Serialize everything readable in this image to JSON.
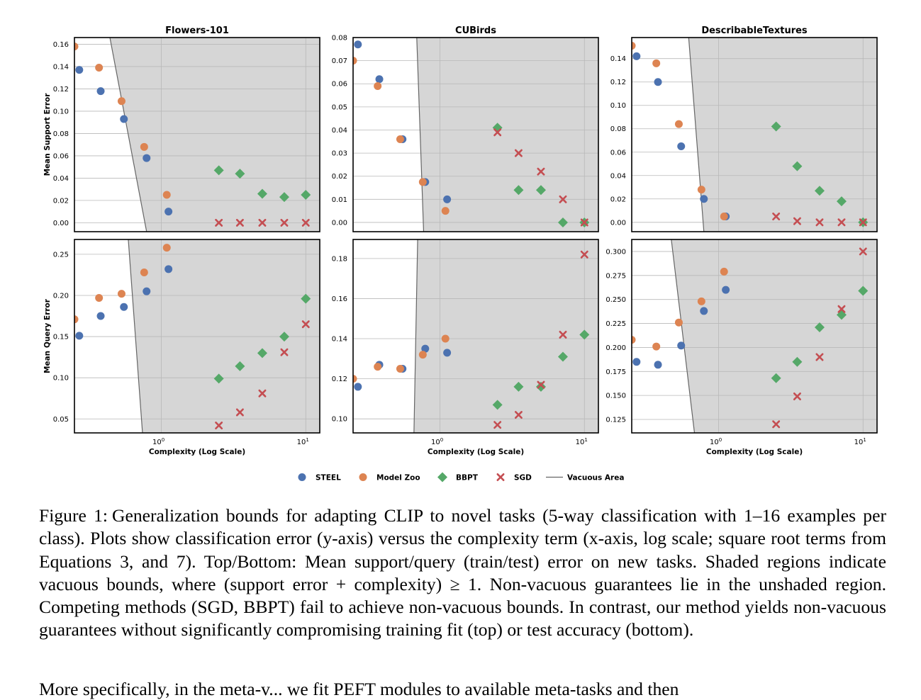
{
  "chart_data": [
    {
      "type": "scatter",
      "title": "Flowers-101",
      "ylabel": "Mean Support Error",
      "xlabel": "",
      "xscale": "log",
      "xlim": [
        0.25,
        12.5
      ],
      "ylim": [
        -0.008,
        0.166
      ],
      "yticks": [
        "0.00",
        "0.02",
        "0.04",
        "0.06",
        "0.08",
        "0.10",
        "0.12",
        "0.14",
        "0.16"
      ],
      "xticks": [],
      "vacuous_line": [
        [
          0.44,
          0.166
        ],
        [
          0.79,
          -0.008
        ]
      ],
      "series": [
        {
          "name": "STEEL",
          "x": [
            0.27,
            0.38,
            0.55,
            0.79,
            1.12
          ],
          "y": [
            0.137,
            0.118,
            0.093,
            0.058,
            0.01
          ]
        },
        {
          "name": "Model Zoo",
          "x": [
            0.25,
            0.37,
            0.53,
            0.76,
            1.09
          ],
          "y": [
            0.158,
            0.139,
            0.109,
            0.068,
            0.025
          ]
        },
        {
          "name": "BBPT",
          "x": [
            2.5,
            3.5,
            5.0,
            7.1,
            10.0
          ],
          "y": [
            0.047,
            0.044,
            0.026,
            0.023,
            0.025
          ]
        },
        {
          "name": "SGD",
          "x": [
            2.5,
            3.5,
            5.0,
            7.1,
            10.0
          ],
          "y": [
            0.0,
            0.0,
            0.0,
            0.0,
            0.0
          ]
        }
      ]
    },
    {
      "type": "scatter",
      "title": "CUBirds",
      "ylabel": "",
      "xlabel": "",
      "xscale": "log",
      "xlim": [
        0.25,
        12.5
      ],
      "ylim": [
        -0.004,
        0.08
      ],
      "yticks": [
        "0.00",
        "0.01",
        "0.02",
        "0.03",
        "0.04",
        "0.05",
        "0.06",
        "0.07",
        "0.08"
      ],
      "xticks": [],
      "vacuous_line": [
        [
          0.69,
          0.08
        ],
        [
          0.77,
          -0.004
        ]
      ],
      "series": [
        {
          "name": "STEEL",
          "x": [
            0.27,
            0.38,
            0.55,
            0.79,
            1.12
          ],
          "y": [
            0.077,
            0.062,
            0.036,
            0.0175,
            0.01
          ]
        },
        {
          "name": "Model Zoo",
          "x": [
            0.25,
            0.37,
            0.53,
            0.76,
            1.09
          ],
          "y": [
            0.07,
            0.059,
            0.036,
            0.0175,
            0.005
          ]
        },
        {
          "name": "BBPT",
          "x": [
            2.5,
            3.5,
            5.0,
            7.1,
            10.0
          ],
          "y": [
            0.041,
            0.014,
            0.014,
            0.0,
            0.0
          ]
        },
        {
          "name": "SGD",
          "x": [
            2.5,
            3.5,
            5.0,
            7.1,
            10.0
          ],
          "y": [
            0.039,
            0.03,
            0.022,
            0.01,
            0.0
          ]
        }
      ]
    },
    {
      "type": "scatter",
      "title": "DescribableTextures",
      "ylabel": "",
      "xlabel": "",
      "xscale": "log",
      "xlim": [
        0.25,
        12.5
      ],
      "ylim": [
        -0.008,
        0.158
      ],
      "yticks": [
        "0.00",
        "0.02",
        "0.04",
        "0.06",
        "0.08",
        "0.10",
        "0.12",
        "0.14"
      ],
      "xticks": [],
      "vacuous_line": [
        [
          0.62,
          0.158
        ],
        [
          0.79,
          -0.008
        ]
      ],
      "series": [
        {
          "name": "STEEL",
          "x": [
            0.27,
            0.38,
            0.55,
            0.79,
            1.12
          ],
          "y": [
            0.142,
            0.12,
            0.065,
            0.02,
            0.005
          ]
        },
        {
          "name": "Model Zoo",
          "x": [
            0.25,
            0.37,
            0.53,
            0.76,
            1.09
          ],
          "y": [
            0.151,
            0.136,
            0.084,
            0.028,
            0.005
          ]
        },
        {
          "name": "BBPT",
          "x": [
            2.5,
            3.5,
            5.0,
            7.1,
            10.0
          ],
          "y": [
            0.082,
            0.048,
            0.027,
            0.018,
            0.0
          ]
        },
        {
          "name": "SGD",
          "x": [
            2.5,
            3.5,
            5.0,
            7.1,
            10.0
          ],
          "y": [
            0.005,
            0.001,
            0.0,
            0.0,
            0.0
          ]
        }
      ]
    },
    {
      "type": "scatter",
      "title": "",
      "ylabel": "Mean Query Error",
      "xlabel": "Complexity (Log Scale)",
      "xscale": "log",
      "xlim": [
        0.25,
        12.5
      ],
      "ylim": [
        0.033,
        0.268
      ],
      "yticks": [
        "0.05",
        "0.10",
        "0.15",
        "0.20",
        "0.25"
      ],
      "xticks": [
        "10",
        "10"
      ],
      "xtick_exponents": [
        "0",
        "1"
      ],
      "vacuous_line": [
        [
          0.59,
          0.268
        ],
        [
          0.74,
          0.033
        ]
      ],
      "series": [
        {
          "name": "STEEL",
          "x": [
            0.27,
            0.38,
            0.55,
            0.79,
            1.12
          ],
          "y": [
            0.151,
            0.175,
            0.186,
            0.205,
            0.232
          ]
        },
        {
          "name": "Model Zoo",
          "x": [
            0.25,
            0.37,
            0.53,
            0.76,
            1.09
          ],
          "y": [
            0.171,
            0.197,
            0.202,
            0.228,
            0.258
          ]
        },
        {
          "name": "BBPT",
          "x": [
            2.5,
            3.5,
            5.0,
            7.1,
            10.0
          ],
          "y": [
            0.099,
            0.114,
            0.13,
            0.15,
            0.196
          ]
        },
        {
          "name": "SGD",
          "x": [
            2.5,
            3.5,
            5.0,
            7.1,
            10.0
          ],
          "y": [
            0.042,
            0.058,
            0.081,
            0.131,
            0.165
          ]
        }
      ]
    },
    {
      "type": "scatter",
      "title": "",
      "ylabel": "",
      "xlabel": "Complexity (Log Scale)",
      "xscale": "log",
      "xlim": [
        0.25,
        12.5
      ],
      "ylim": [
        0.093,
        0.1895
      ],
      "yticks": [
        "0.10",
        "0.12",
        "0.14",
        "0.16",
        "0.18"
      ],
      "xticks": [
        "10",
        "10"
      ],
      "xtick_exponents": [
        "0",
        "1"
      ],
      "vacuous_line": [
        [
          0.7,
          0.1895
        ],
        [
          0.66,
          0.093
        ]
      ],
      "series": [
        {
          "name": "STEEL",
          "x": [
            0.27,
            0.38,
            0.55,
            0.79,
            1.12
          ],
          "y": [
            0.116,
            0.127,
            0.125,
            0.135,
            0.133
          ]
        },
        {
          "name": "Model Zoo",
          "x": [
            0.25,
            0.37,
            0.53,
            0.76,
            1.09
          ],
          "y": [
            0.12,
            0.126,
            0.125,
            0.132,
            0.14
          ]
        },
        {
          "name": "BBPT",
          "x": [
            2.5,
            3.5,
            5.0,
            7.1,
            10.0
          ],
          "y": [
            0.107,
            0.116,
            0.116,
            0.131,
            0.142
          ]
        },
        {
          "name": "SGD",
          "x": [
            2.5,
            3.5,
            5.0,
            7.1,
            10.0
          ],
          "y": [
            0.097,
            0.102,
            0.117,
            0.142,
            0.182
          ]
        }
      ]
    },
    {
      "type": "scatter",
      "title": "",
      "ylabel": "",
      "xlabel": "Complexity (Log Scale)",
      "xscale": "log",
      "xlim": [
        0.25,
        12.5
      ],
      "ylim": [
        0.111,
        0.3125
      ],
      "yticks": [
        "0.125",
        "0.150",
        "0.175",
        "0.200",
        "0.225",
        "0.250",
        "0.275",
        "0.300"
      ],
      "xticks": [
        "10",
        "10"
      ],
      "xtick_exponents": [
        "0",
        "1"
      ],
      "vacuous_line": [
        [
          0.47,
          0.3125
        ],
        [
          0.68,
          0.111
        ]
      ],
      "series": [
        {
          "name": "STEEL",
          "x": [
            0.27,
            0.38,
            0.55,
            0.79,
            1.12
          ],
          "y": [
            0.185,
            0.182,
            0.202,
            0.238,
            0.26
          ]
        },
        {
          "name": "Model Zoo",
          "x": [
            0.25,
            0.37,
            0.53,
            0.76,
            1.09
          ],
          "y": [
            0.208,
            0.201,
            0.226,
            0.248,
            0.279
          ]
        },
        {
          "name": "BBPT",
          "x": [
            2.5,
            3.5,
            5.0,
            7.1,
            10.0
          ],
          "y": [
            0.168,
            0.185,
            0.221,
            0.234,
            0.259
          ]
        },
        {
          "name": "SGD",
          "x": [
            2.5,
            3.5,
            5.0,
            7.1,
            10.0
          ],
          "y": [
            0.12,
            0.149,
            0.19,
            0.24,
            0.3
          ]
        }
      ]
    }
  ],
  "legend": {
    "placement": "bottom-center",
    "items": [
      {
        "name": "STEEL",
        "marker": "circle",
        "color": "#4C72B0"
      },
      {
        "name": "Model Zoo",
        "marker": "circle",
        "color": "#DD8452"
      },
      {
        "name": "BBPT",
        "marker": "diamond",
        "color": "#55A868"
      },
      {
        "name": "SGD",
        "marker": "x",
        "color": "#C44E52"
      },
      {
        "name": "Vacuous Area",
        "marker": "line",
        "color": "#666666"
      }
    ]
  },
  "colors": {
    "vacuous_fill": "#d6d6d6",
    "grid": "#b8b8b8",
    "axes": "#000000"
  },
  "caption": {
    "label": "Figure 1:",
    "text": "Generalization bounds for adapting CLIP to novel tasks (5-way classification with 1–16 examples per class). Plots show classification error (y-axis) versus the complexity term (x-axis, log scale; square root terms from Equations 3, and 7). Top/Bottom: Mean support/query (train/test) error on new tasks. Shaded regions indicate vacuous bounds, where (support error + complexity) ≥ 1. Non-vacuous guarantees lie in the unshaded region. Competing methods (SGD, BBPT) fail to achieve non-vacuous bounds. In contrast, our method yields non-vacuous guarantees without significantly compromising training fit (top) or test accuracy (bottom)."
  },
  "next_text": "More specifically, in the meta-v... we fit PEFT modules to available meta-tasks and then"
}
